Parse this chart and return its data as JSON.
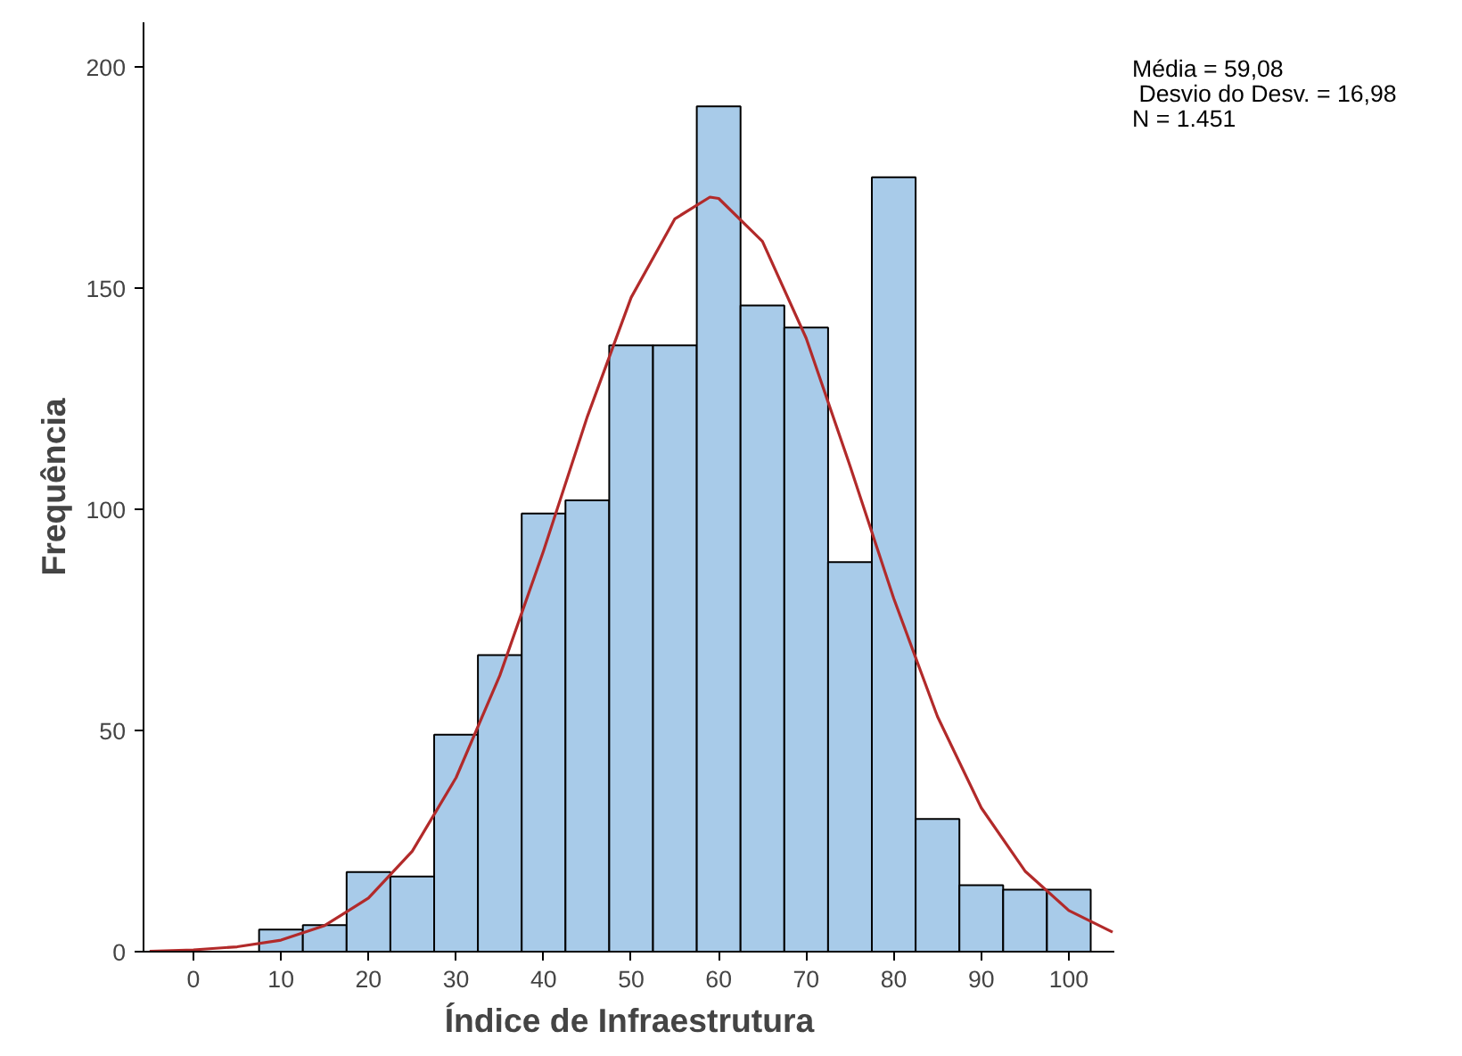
{
  "chart_data": {
    "type": "histogram",
    "xlabel": "Índice de Infraestrutura",
    "ylabel": "Frequência",
    "bins": [
      7.5,
      12.5,
      17.5,
      22.5,
      27.5,
      32.5,
      37.5,
      42.5,
      47.5,
      52.5,
      57.5,
      62.5,
      67.5,
      72.5,
      77.5,
      82.5,
      87.5,
      92.5,
      97.5,
      102.5
    ],
    "values": [
      5,
      6,
      18,
      17,
      49,
      67,
      99,
      102,
      137,
      137,
      191,
      146,
      141,
      88,
      175,
      30,
      15,
      14,
      14
    ],
    "color": "#a8cbe9",
    "series": [
      {
        "type": "line",
        "color": "#b22a2a",
        "x": [
          -5,
          0,
          5,
          10,
          15,
          20,
          25,
          30,
          35,
          40,
          45,
          50,
          55,
          59,
          60,
          65,
          70,
          75,
          80,
          85,
          90,
          95,
          100,
          105
        ],
        "values": [
          0.1,
          0.4,
          1.1,
          2.6,
          5.9,
          12.1,
          22.7,
          39.3,
          62.4,
          90.6,
          120.9,
          147.8,
          165.6,
          170.5,
          170.2,
          160.5,
          138.6,
          109.8,
          79.8,
          53.1,
          32.5,
          18.2,
          9.3,
          4.4
        ]
      }
    ],
    "xlim": [
      -5.7,
      105.3
    ],
    "ylim": [
      0,
      210
    ],
    "xticks": [
      0,
      10,
      20,
      30,
      40,
      50,
      60,
      70,
      80,
      90,
      100
    ],
    "yticks": [
      0,
      50,
      100,
      150,
      200
    ],
    "grid": false,
    "annotations": [
      "Média = 59,08",
      " Desvio do Desv. = 16,98",
      "N = 1.451"
    ]
  }
}
